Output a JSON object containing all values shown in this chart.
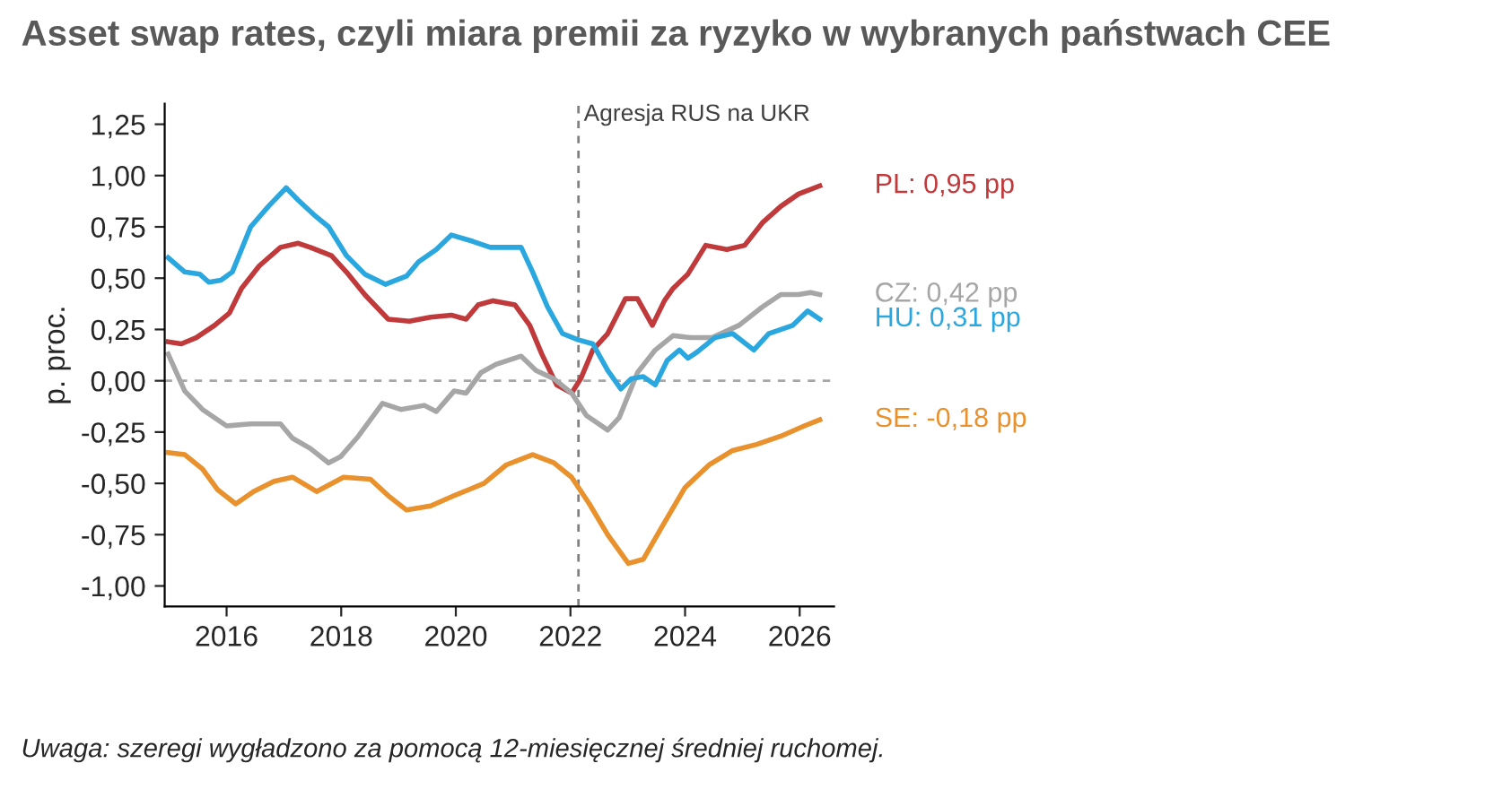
{
  "chart_data": {
    "type": "line",
    "title": "Asset swap rates, czyli miara premii za ryzyko w wybranych państwach CEE",
    "ylabel": "p. proc.",
    "annotations": [
      "Uwaga: szeregi wygładzono za pomocą 12-miesięcznej średniej ruchomej."
    ],
    "xlim": [
      2014.92,
      2026.6
    ],
    "xticks": [
      2016,
      2018,
      2020,
      2022,
      2024,
      2026
    ],
    "ylim": [
      -1.1,
      1.35
    ],
    "yticks": [
      {
        "value": 1.25,
        "label": "1,25"
      },
      {
        "value": 1.0,
        "label": "1,00"
      },
      {
        "value": 0.75,
        "label": "0,75"
      },
      {
        "value": 0.5,
        "label": "0,50"
      },
      {
        "value": 0.25,
        "label": "0,25"
      },
      {
        "value": 0,
        "label": "0,00"
      },
      {
        "value": -0.25,
        "label": "-0,25"
      },
      {
        "value": -0.5,
        "label": "-0,50"
      },
      {
        "value": -0.75,
        "label": "-0,75"
      },
      {
        "value": -1.0,
        "label": "-1,00"
      }
    ],
    "grid": false,
    "legend": false,
    "ref_lines": [
      {
        "axis": "x",
        "value": 2022.14,
        "label": "Agresja RUS na UKR",
        "color": "#808080",
        "line_style": "dashed"
      },
      {
        "axis": "y",
        "value": 0,
        "label": null,
        "color": "#a6a6a6",
        "line_style": "dashed"
      }
    ],
    "series": [
      {
        "name": "PL: 0,95 pp",
        "color": "#c0393b",
        "x": [
          2014.98,
          2015.21,
          2015.47,
          2015.79,
          2016.05,
          2016.26,
          2016.57,
          2016.94,
          2017.25,
          2017.46,
          2017.83,
          2018.09,
          2018.41,
          2018.82,
          2019.19,
          2019.56,
          2019.92,
          2020.18,
          2020.39,
          2020.65,
          2021.03,
          2021.29,
          2021.5,
          2021.76,
          2022.02,
          2022.18,
          2022.39,
          2022.65,
          2022.96,
          2023.17,
          2023.43,
          2023.64,
          2023.79,
          2024.05,
          2024.36,
          2024.73,
          2025.04,
          2025.35,
          2025.67,
          2025.98,
          2026.35
        ],
        "values": [
          0.19,
          0.18,
          0.21,
          0.27,
          0.33,
          0.45,
          0.56,
          0.65,
          0.67,
          0.65,
          0.61,
          0.53,
          0.42,
          0.3,
          0.29,
          0.31,
          0.32,
          0.3,
          0.37,
          0.39,
          0.37,
          0.27,
          0.13,
          -0.02,
          -0.06,
          0.01,
          0.15,
          0.23,
          0.4,
          0.4,
          0.27,
          0.39,
          0.45,
          0.52,
          0.66,
          0.64,
          0.66,
          0.77,
          0.85,
          0.91,
          0.95
        ]
      },
      {
        "name": "CZ: 0,42 pp",
        "color": "#a6a6a6",
        "x": [
          2014.98,
          2015.27,
          2015.58,
          2016.0,
          2016.42,
          2016.94,
          2017.15,
          2017.46,
          2017.78,
          2017.99,
          2018.3,
          2018.72,
          2019.04,
          2019.45,
          2019.66,
          2019.97,
          2020.18,
          2020.44,
          2020.7,
          2021.14,
          2021.4,
          2021.71,
          2022.02,
          2022.28,
          2022.65,
          2022.85,
          2023.17,
          2023.48,
          2023.79,
          2024.1,
          2024.47,
          2024.94,
          2025.35,
          2025.67,
          2025.98,
          2026.19,
          2026.35
        ],
        "values": [
          0.13,
          -0.05,
          -0.14,
          -0.22,
          -0.21,
          -0.21,
          -0.28,
          -0.33,
          -0.4,
          -0.37,
          -0.27,
          -0.11,
          -0.14,
          -0.12,
          -0.15,
          -0.05,
          -0.06,
          0.04,
          0.08,
          0.12,
          0.05,
          0.01,
          -0.06,
          -0.17,
          -0.24,
          -0.18,
          0.04,
          0.15,
          0.22,
          0.21,
          0.21,
          0.27,
          0.36,
          0.42,
          0.42,
          0.43,
          0.42
        ]
      },
      {
        "name": "HU: 0,31 pp",
        "color": "#2aa7df",
        "x": [
          2014.98,
          2015.27,
          2015.53,
          2015.69,
          2015.9,
          2016.1,
          2016.42,
          2016.73,
          2017.04,
          2017.25,
          2017.52,
          2017.78,
          2018.09,
          2018.41,
          2018.77,
          2019.14,
          2019.35,
          2019.66,
          2019.92,
          2020.29,
          2020.6,
          2021.14,
          2021.34,
          2021.6,
          2021.86,
          2022.13,
          2022.39,
          2022.65,
          2022.88,
          2023.06,
          2023.27,
          2023.48,
          2023.69,
          2023.9,
          2024.05,
          2024.21,
          2024.52,
          2024.83,
          2025.2,
          2025.46,
          2025.88,
          2026.14,
          2026.35
        ],
        "values": [
          0.6,
          0.53,
          0.52,
          0.48,
          0.49,
          0.53,
          0.75,
          0.85,
          0.94,
          0.88,
          0.81,
          0.75,
          0.61,
          0.52,
          0.47,
          0.51,
          0.58,
          0.64,
          0.71,
          0.68,
          0.65,
          0.65,
          0.53,
          0.36,
          0.23,
          0.2,
          0.18,
          0.05,
          -0.04,
          0.01,
          0.02,
          -0.02,
          0.1,
          0.15,
          0.11,
          0.14,
          0.21,
          0.23,
          0.15,
          0.23,
          0.27,
          0.34,
          0.3
        ]
      },
      {
        "name": "SE: -0,18 pp",
        "color": "#e8912d",
        "x": [
          2014.98,
          2015.27,
          2015.58,
          2015.84,
          2016.16,
          2016.47,
          2016.83,
          2017.15,
          2017.57,
          2018.04,
          2018.51,
          2018.82,
          2019.14,
          2019.56,
          2019.97,
          2020.23,
          2020.49,
          2020.88,
          2021.34,
          2021.71,
          2022.02,
          2022.33,
          2022.65,
          2023.01,
          2023.27,
          2023.58,
          2024.0,
          2024.42,
          2024.83,
          2025.25,
          2025.67,
          2026.08,
          2026.35
        ],
        "values": [
          -0.35,
          -0.36,
          -0.43,
          -0.53,
          -0.6,
          -0.54,
          -0.49,
          -0.47,
          -0.54,
          -0.47,
          -0.48,
          -0.56,
          -0.63,
          -0.61,
          -0.56,
          -0.53,
          -0.5,
          -0.41,
          -0.36,
          -0.4,
          -0.47,
          -0.6,
          -0.75,
          -0.89,
          -0.87,
          -0.72,
          -0.52,
          -0.41,
          -0.34,
          -0.31,
          -0.27,
          -0.22,
          -0.19
        ]
      }
    ]
  }
}
